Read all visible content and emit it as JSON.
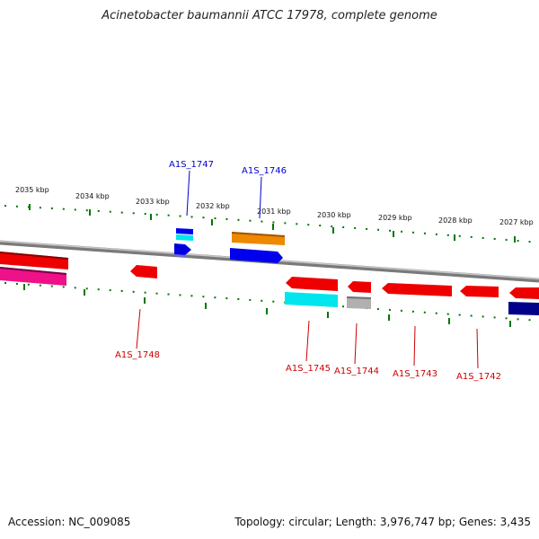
{
  "header": {
    "title": "Acinetobacter baumannii ATCC 17978, complete genome"
  },
  "footer": {
    "accession": "Accession: NC_009085",
    "summary": "Topology: circular; Length: 3,976,747 bp; Genes: 3,435"
  },
  "scale": {
    "labels": [
      "2035 kbp",
      "2034 kbp",
      "2033 kbp",
      "2032 kbp",
      "2031 kbp",
      "2030 kbp",
      "2029 kbp",
      "2028 kbp",
      "2027 kbp"
    ]
  },
  "genes": {
    "A1S_1747": "A1S_1747",
    "A1S_1746": "A1S_1746",
    "A1S_1748": "A1S_1748",
    "A1S_1745": "A1S_1745",
    "A1S_1744": "A1S_1744",
    "A1S_1743": "A1S_1743",
    "A1S_1742": "A1S_1742"
  },
  "colors": {
    "upper_label": "#0000cc",
    "lower_label": "#cc0000",
    "backbone": "#888888",
    "tick": "#007700",
    "red": "#ee0000",
    "blue": "#0000ee",
    "cyan": "#00e5ee",
    "orange": "#ee8800",
    "magenta": "#ee1188",
    "navy": "#000088",
    "gray": "#b0b0b0"
  }
}
